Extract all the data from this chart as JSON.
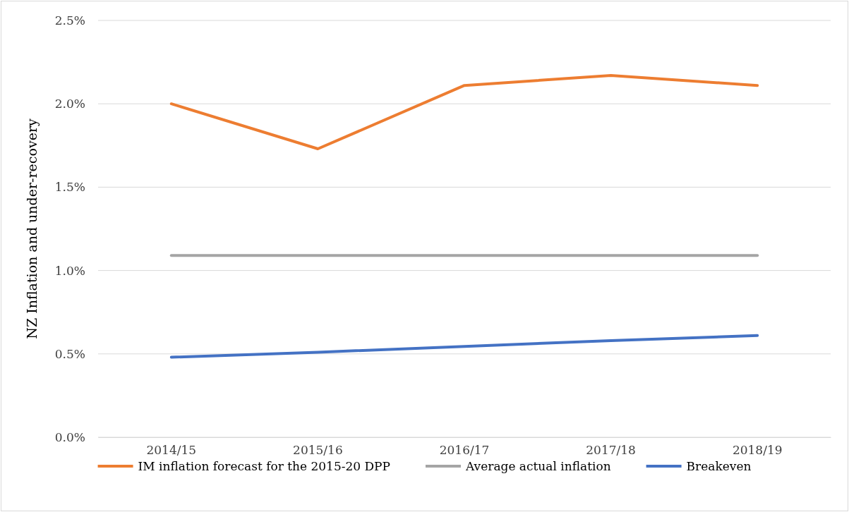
{
  "chart_data": {
    "type": "line",
    "ylabel": "NZ Inflation and under-recovery",
    "categories": [
      "2014/15",
      "2015/16",
      "2016/17",
      "2017/18",
      "2018/19"
    ],
    "series": [
      {
        "name": "IM inflation forecast for the 2015-20 DPP",
        "color": "#ed7d31",
        "values": [
          2.0,
          1.73,
          2.11,
          2.17,
          2.11
        ]
      },
      {
        "name": "Average actual inflation",
        "color": "#a5a5a5",
        "values": [
          1.09,
          1.09,
          1.09,
          1.09,
          1.09
        ]
      },
      {
        "name": "Breakeven",
        "color": "#4472c4",
        "values": [
          0.48,
          0.51,
          0.545,
          0.58,
          0.61
        ]
      }
    ],
    "ylim": [
      0,
      2.5
    ],
    "yticks": [
      {
        "value": 0,
        "label": "0.0%"
      },
      {
        "value": 0.5,
        "label": "0.5%"
      },
      {
        "value": 1,
        "label": "1.0%"
      },
      {
        "value": 1.5,
        "label": "1.5%"
      },
      {
        "value": 2,
        "label": "2.0%"
      },
      {
        "value": 2.5,
        "label": "2.5%"
      }
    ],
    "grid": "y",
    "legend": "bottom",
    "marker": "none",
    "line_style": "solid"
  }
}
